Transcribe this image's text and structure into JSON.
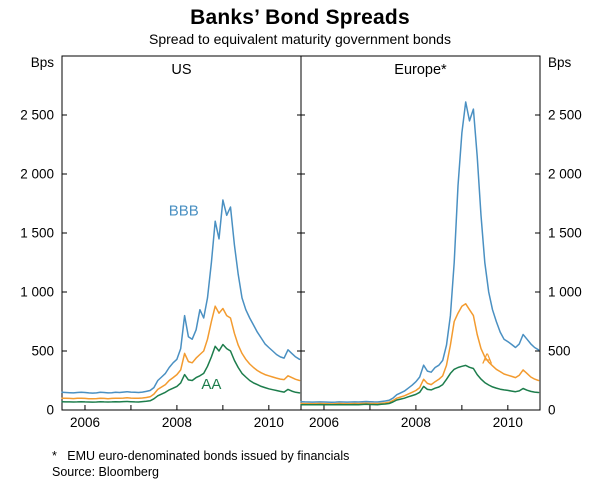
{
  "header": {
    "title": "Banks’ Bond Spreads",
    "subtitle": "Spread to equivalent maturity government bonds"
  },
  "footnotes": {
    "note": "*   EMU euro-denominated bonds issued by financials",
    "source": "Source: Bloomberg"
  },
  "chart_data": {
    "type": "line",
    "unit_label": "Bps",
    "ylim": [
      0,
      3000
    ],
    "yticks": [
      {
        "value": 0,
        "label": "0"
      },
      {
        "value": 500,
        "label": "500"
      },
      {
        "value": 1000,
        "label": "1 000"
      },
      {
        "value": 1500,
        "label": "1 500"
      },
      {
        "value": 2000,
        "label": "2 000"
      },
      {
        "value": 2500,
        "label": "2 500"
      }
    ],
    "xlim": [
      2005.5,
      2010.7
    ],
    "x_start": 2005.5,
    "x_step_years": 0.0833333,
    "xticks": [
      2006,
      2007,
      2008,
      2009,
      2010
    ],
    "xtick_labels": [
      {
        "value": 2006,
        "label": "2006"
      },
      {
        "value": 2008,
        "label": "2008"
      },
      {
        "value": 2010,
        "label": "2010"
      }
    ],
    "colors": {
      "BBB": "#4a90c2",
      "A": "#f39b2f",
      "AA": "#1d7d4c"
    },
    "panels": [
      {
        "title": "US",
        "series": [
          {
            "name": "BBB",
            "values": [
              150,
              148,
              147,
              145,
              148,
              150,
              148,
              145,
              143,
              145,
              150,
              148,
              145,
              147,
              150,
              148,
              152,
              155,
              152,
              150,
              148,
              152,
              158,
              165,
              190,
              250,
              280,
              310,
              360,
              400,
              430,
              520,
              800,
              620,
              600,
              680,
              850,
              780,
              950,
              1250,
              1600,
              1450,
              1780,
              1650,
              1720,
              1400,
              1150,
              950,
              850,
              780,
              720,
              660,
              610,
              560,
              530,
              500,
              470,
              450,
              440,
              510,
              480,
              450,
              430
            ]
          },
          {
            "name": "A",
            "values": [
              100,
              99,
              98,
              97,
              99,
              100,
              98,
              96,
              95,
              97,
              100,
              98,
              96,
              98,
              100,
              99,
              101,
              103,
              101,
              100,
              99,
              102,
              106,
              112,
              135,
              175,
              195,
              215,
              250,
              275,
              300,
              340,
              480,
              410,
              400,
              440,
              470,
              500,
              600,
              750,
              880,
              820,
              860,
              800,
              780,
              650,
              550,
              480,
              430,
              390,
              360,
              335,
              315,
              300,
              290,
              280,
              270,
              262,
              258,
              290,
              275,
              260,
              250
            ]
          },
          {
            "name": "AA",
            "values": [
              70,
              69,
              69,
              68,
              69,
              70,
              69,
              68,
              67,
              68,
              70,
              69,
              68,
              69,
              70,
              69,
              71,
              72,
              70,
              69,
              68,
              71,
              74,
              78,
              95,
              120,
              135,
              150,
              170,
              185,
              200,
              230,
              300,
              255,
              250,
              275,
              290,
              310,
              370,
              450,
              540,
              500,
              555,
              520,
              500,
              420,
              360,
              310,
              280,
              250,
              230,
              215,
              200,
              190,
              180,
              172,
              165,
              158,
              152,
              175,
              160,
              150,
              145
            ]
          }
        ],
        "annotations": [
          {
            "text": "BBB",
            "x": 2008.15,
            "y": 1650,
            "series": "BBB"
          },
          {
            "text": "AA",
            "x": 2008.75,
            "y": 180,
            "series": "AA"
          }
        ]
      },
      {
        "title": "Europe*",
        "series": [
          {
            "name": "BBB",
            "values": [
              70,
              69,
              68,
              67,
              68,
              69,
              68,
              67,
              66,
              67,
              69,
              68,
              67,
              68,
              69,
              68,
              70,
              72,
              70,
              69,
              68,
              72,
              76,
              82,
              100,
              130,
              145,
              160,
              185,
              210,
              240,
              280,
              380,
              330,
              320,
              360,
              380,
              420,
              550,
              800,
              1250,
              1900,
              2350,
              2610,
              2450,
              2550,
              2150,
              1650,
              1250,
              1000,
              850,
              750,
              660,
              600,
              580,
              555,
              530,
              560,
              640,
              600,
              560,
              530,
              510
            ]
          },
          {
            "name": "A",
            "values": [
              55,
              54,
              54,
              53,
              54,
              55,
              54,
              53,
              52,
              53,
              55,
              54,
              53,
              54,
              55,
              54,
              56,
              58,
              56,
              55,
              54,
              57,
              60,
              65,
              80,
              100,
              110,
              120,
              135,
              150,
              165,
              190,
              260,
              225,
              215,
              240,
              260,
              290,
              380,
              550,
              750,
              820,
              880,
              900,
              850,
              800,
              640,
              520,
              450,
              405,
              375,
              345,
              325,
              305,
              295,
              285,
              275,
              295,
              340,
              310,
              280,
              262,
              250
            ]
          },
          {
            "name": "AA",
            "values": [
              45,
              45,
              44,
              44,
              45,
              46,
              45,
              44,
              44,
              45,
              46,
              45,
              44,
              45,
              46,
              45,
              47,
              48,
              47,
              46,
              45,
              48,
              51,
              55,
              68,
              85,
              92,
              100,
              112,
              122,
              132,
              150,
              200,
              175,
              170,
              185,
              195,
              215,
              260,
              310,
              345,
              360,
              370,
              378,
              362,
              352,
              300,
              262,
              232,
              212,
              196,
              186,
              176,
              170,
              166,
              160,
              155,
              162,
              182,
              168,
              158,
              152,
              148
            ]
          }
        ],
        "annotations": [
          {
            "text": "A",
            "x": 2009.55,
            "y": 395,
            "series": "A"
          }
        ]
      }
    ]
  }
}
